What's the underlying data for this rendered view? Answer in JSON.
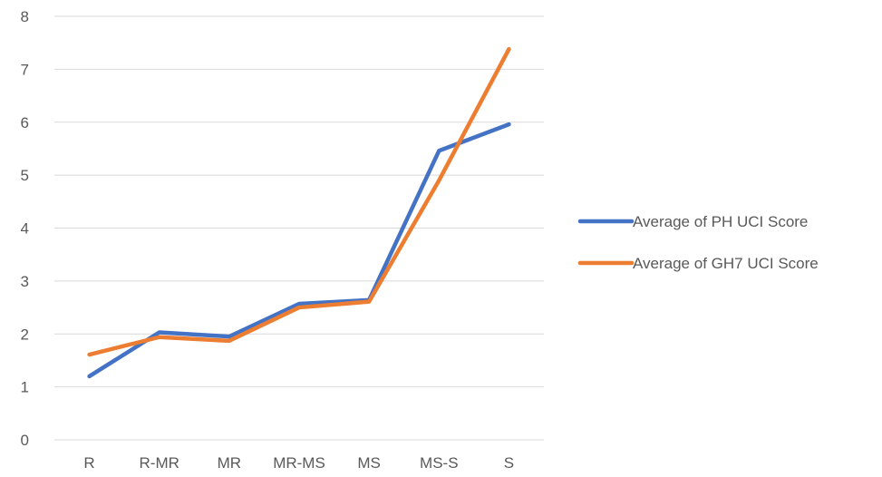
{
  "chart_data": {
    "type": "line",
    "title": "",
    "xlabel": "",
    "ylabel": "",
    "categories": [
      "R",
      "R-MR",
      "MR",
      "MR-MS",
      "MS",
      "MS-S",
      "S"
    ],
    "ylim": [
      0,
      8
    ],
    "yticks": [
      "0",
      "1",
      "2",
      "3",
      "4",
      "5",
      "6",
      "7",
      "8"
    ],
    "grid": true,
    "legend_position": "right",
    "series": [
      {
        "name": "Average of PH UCI Score",
        "color": "#4472c4",
        "values": [
          1.2,
          2.03,
          1.95,
          2.57,
          2.64,
          5.46,
          5.96
        ]
      },
      {
        "name": "Average of GH7 UCI Score",
        "color": "#ed7d31",
        "values": [
          1.61,
          1.94,
          1.87,
          2.5,
          2.61,
          4.9,
          7.38
        ]
      }
    ]
  }
}
